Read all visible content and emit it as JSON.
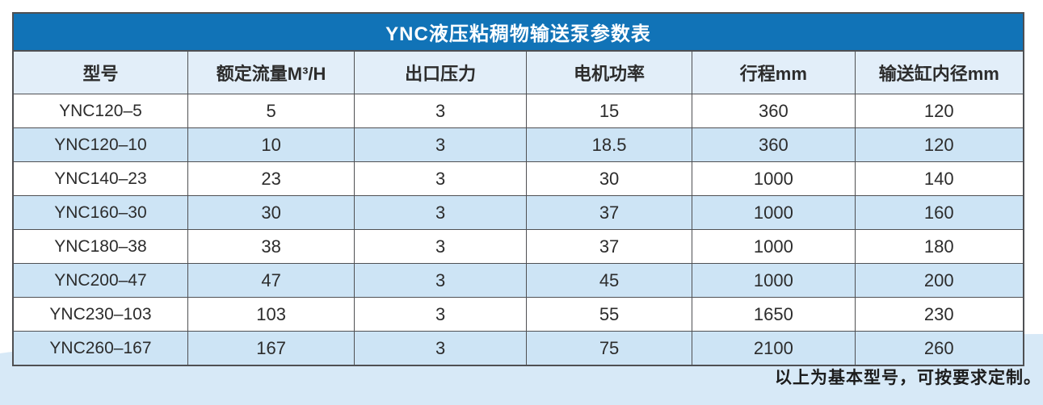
{
  "title": {
    "text": "YNC液压粘稠物输送泵参数表"
  },
  "table": {
    "columns": [
      "型号",
      "额定流量M³/H",
      "出口压力",
      "电机功率",
      "行程mm",
      "输送缸内径mm"
    ],
    "rows": [
      [
        "YNC120–5",
        "5",
        "3",
        "15",
        "360",
        "120"
      ],
      [
        "YNC120–10",
        "10",
        "3",
        "18.5",
        "360",
        "120"
      ],
      [
        "YNC140–23",
        "23",
        "3",
        "30",
        "1000",
        "140"
      ],
      [
        "YNC160–30",
        "30",
        "3",
        "37",
        "1000",
        "160"
      ],
      [
        "YNC180–38",
        "38",
        "3",
        "37",
        "1000",
        "180"
      ],
      [
        "YNC200–47",
        "47",
        "3",
        "45",
        "1000",
        "200"
      ],
      [
        "YNC230–103",
        "103",
        "3",
        "55",
        "1650",
        "230"
      ],
      [
        "YNC260–167",
        "167",
        "3",
        "75",
        "2100",
        "260"
      ]
    ]
  },
  "note": {
    "text": "以上为基本型号，可按要求定制。"
  },
  "colors": {
    "title_bar": "#1173b7",
    "title_text": "#ffffff",
    "header_bg": "#e2eef9",
    "alt_row_bg": "#cde4f5",
    "bottom_band": "#d7e9f7",
    "grid_border": "#4f5053",
    "body_text": "#2c2c2c"
  }
}
